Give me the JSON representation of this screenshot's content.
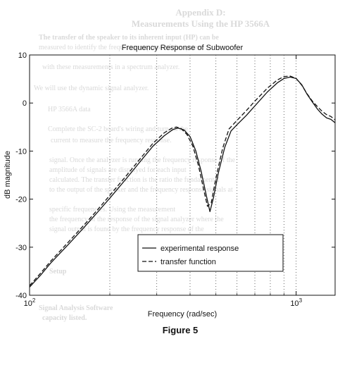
{
  "figure_caption": "Figure 5",
  "background_text": {
    "heading_line1": "Appendix D:",
    "heading_line2": "Measurements Using the HP 3566A",
    "lines": [
      "The transfer of the speaker to its inherent input (HP) can be",
      "measured to identify the frequency response of the system",
      "with these measurements in a spectrum analyzer.",
      "We will use the dynamic signal analyzer.",
      "HP 3566A data",
      "Complete the SC-2 board's wiring and turn on the",
      "current to measure the frequency response.",
      "signal. Once the analyzer is running the frequency response of the",
      "amplitude of signals are displayed for each input",
      "calculated. The transfer function is the ratio the fundamental",
      "to the output of the speaker and the frequency response signals at",
      "specific frequencies. Using the measurement",
      "the frequency of the response of the signal analyzer where the",
      "signal output is found by the frequency response of the",
      "Setup",
      "Signal Analysis Software",
      "capacity listed."
    ]
  },
  "chart_data": {
    "type": "line",
    "title": "Frequency Response of Subwoofer",
    "xlabel": "Frequency (rad/sec)",
    "ylabel": "dB magnitude",
    "xscale": "log",
    "xlim": [
      100,
      1400
    ],
    "ylim": [
      -40,
      10
    ],
    "x_ticks": [
      100,
      1000
    ],
    "x_tick_labels": [
      "10",
      "10"
    ],
    "x_tick_exponents": [
      "2",
      "3"
    ],
    "y_ticks": [
      10,
      0,
      -10,
      -20,
      -30,
      -40
    ],
    "y_tick_labels": [
      "10",
      "0",
      "-10",
      "-20",
      "-30",
      "-40"
    ],
    "grid": "vertical dotted minor",
    "legend_position": "lower-right",
    "series": [
      {
        "name": "experimental response",
        "style": "solid",
        "color": "#111111",
        "points": [
          [
            100,
            -38.3
          ],
          [
            110,
            -35.8
          ],
          [
            120,
            -33.3
          ],
          [
            140,
            -29.4
          ],
          [
            160,
            -25.9
          ],
          [
            180,
            -22.7
          ],
          [
            200,
            -19.8
          ],
          [
            230,
            -15.8
          ],
          [
            260,
            -12.2
          ],
          [
            290,
            -9.0
          ],
          [
            320,
            -6.8
          ],
          [
            345,
            -5.5
          ],
          [
            360,
            -5.2
          ],
          [
            380,
            -5.6
          ],
          [
            400,
            -7.0
          ],
          [
            420,
            -9.9
          ],
          [
            440,
            -14.2
          ],
          [
            460,
            -19.2
          ],
          [
            475,
            -22.6
          ],
          [
            490,
            -19.6
          ],
          [
            510,
            -14.7
          ],
          [
            540,
            -9.2
          ],
          [
            570,
            -5.8
          ],
          [
            600,
            -4.5
          ],
          [
            650,
            -2.6
          ],
          [
            700,
            -0.6
          ],
          [
            780,
            2.3
          ],
          [
            850,
            4.2
          ],
          [
            900,
            5.1
          ],
          [
            950,
            5.4
          ],
          [
            1000,
            5.1
          ],
          [
            1050,
            3.8
          ],
          [
            1100,
            1.8
          ],
          [
            1150,
            0.2
          ],
          [
            1200,
            -1.2
          ],
          [
            1250,
            -2.3
          ],
          [
            1300,
            -3.1
          ],
          [
            1350,
            -3.4
          ],
          [
            1400,
            -4.1
          ],
          [
            1450,
            -4.8
          ],
          [
            1500,
            -5.5
          ]
        ]
      },
      {
        "name": "transfer function",
        "style": "dashed",
        "color": "#111111",
        "points": [
          [
            100,
            -38.0
          ],
          [
            110,
            -35.4
          ],
          [
            120,
            -32.9
          ],
          [
            140,
            -28.9
          ],
          [
            160,
            -25.4
          ],
          [
            180,
            -22.2
          ],
          [
            200,
            -19.2
          ],
          [
            230,
            -15.2
          ],
          [
            260,
            -11.6
          ],
          [
            290,
            -8.4
          ],
          [
            320,
            -6.2
          ],
          [
            340,
            -5.3
          ],
          [
            355,
            -5.0
          ],
          [
            370,
            -5.3
          ],
          [
            390,
            -6.6
          ],
          [
            410,
            -9.0
          ],
          [
            430,
            -13.0
          ],
          [
            450,
            -18.0
          ],
          [
            465,
            -21.5
          ],
          [
            480,
            -20.8
          ],
          [
            500,
            -15.6
          ],
          [
            530,
            -9.4
          ],
          [
            560,
            -5.4
          ],
          [
            600,
            -3.6
          ],
          [
            650,
            -1.6
          ],
          [
            700,
            0.4
          ],
          [
            780,
            3.1
          ],
          [
            850,
            4.8
          ],
          [
            900,
            5.5
          ],
          [
            950,
            5.6
          ],
          [
            1000,
            5.1
          ],
          [
            1050,
            3.7
          ],
          [
            1100,
            1.9
          ],
          [
            1150,
            0.4
          ],
          [
            1200,
            -0.7
          ],
          [
            1250,
            -1.7
          ],
          [
            1300,
            -2.4
          ],
          [
            1350,
            -2.8
          ],
          [
            1400,
            -3.5
          ],
          [
            1450,
            -4.5
          ],
          [
            1500,
            -5.4
          ]
        ]
      }
    ]
  }
}
